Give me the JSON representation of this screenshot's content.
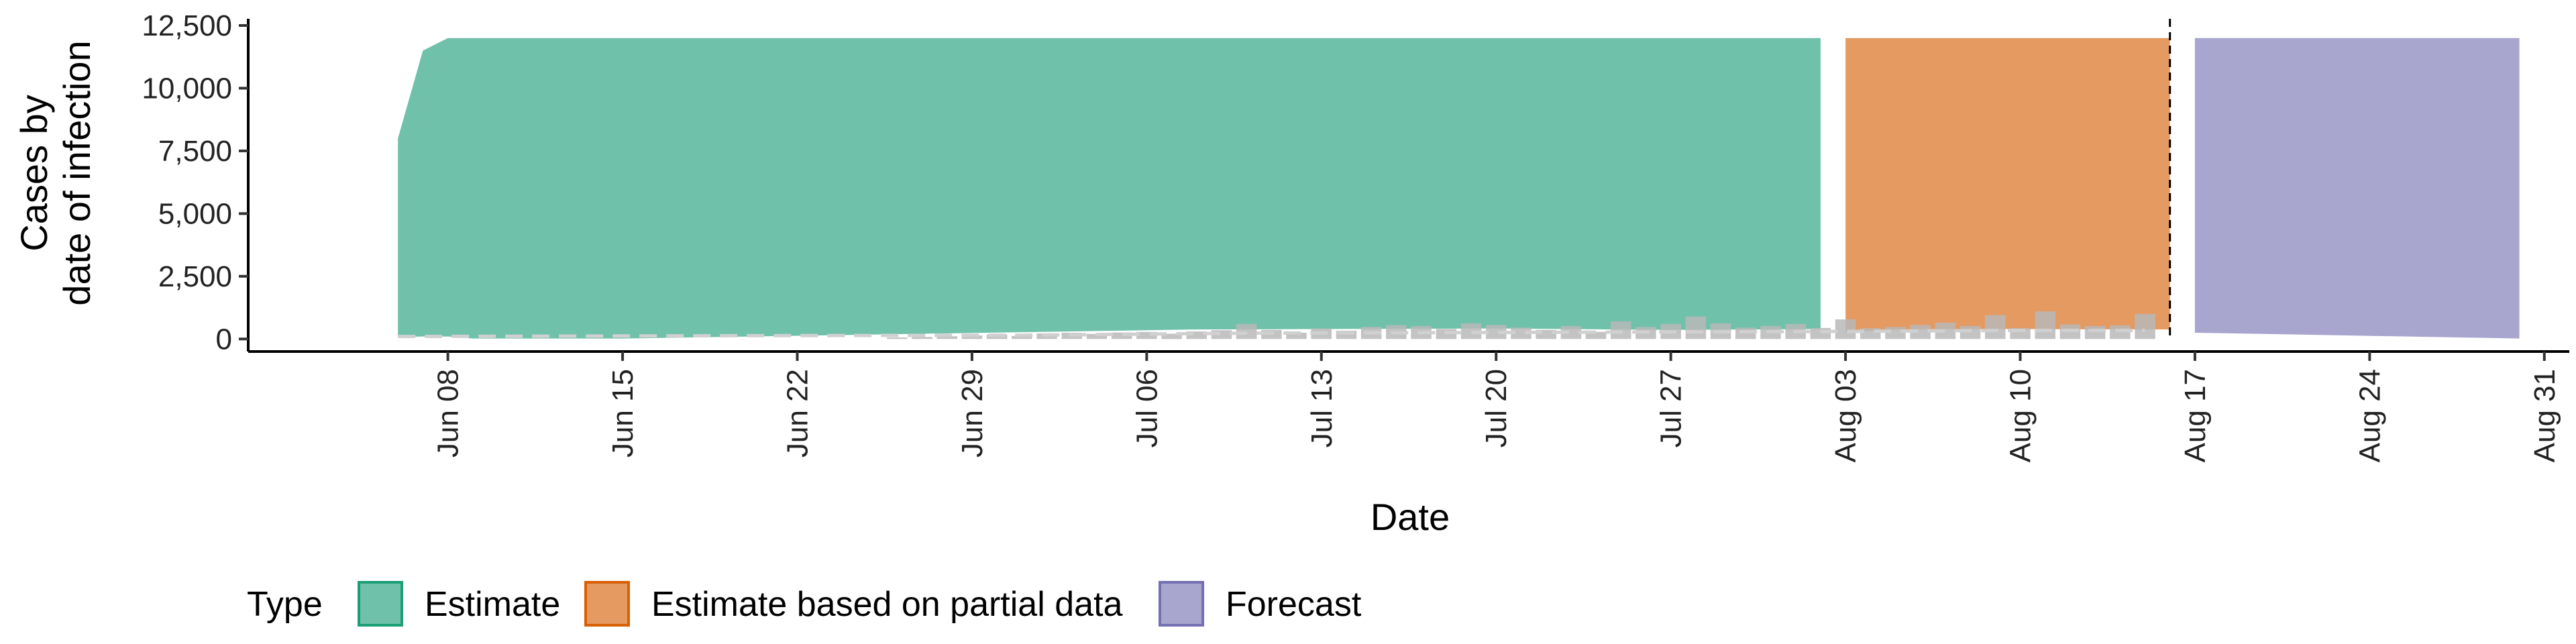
{
  "chart_data": {
    "type": "area",
    "xlabel": "Date",
    "ylabel_lines": [
      "Cases by",
      "date of infection"
    ],
    "ylim": [
      -500,
      12500
    ],
    "y_ticks": [
      0,
      2500,
      5000,
      7500,
      10000,
      12500
    ],
    "y_tick_labels": [
      "0",
      "2,500",
      "5,000",
      "7,500",
      "10,000",
      "12,500"
    ],
    "xlim": [
      "2020-05-31",
      "2020-09-01"
    ],
    "x_ticks": [
      "2020-06-08",
      "2020-06-15",
      "2020-06-22",
      "2020-06-29",
      "2020-07-06",
      "2020-07-13",
      "2020-07-20",
      "2020-07-27",
      "2020-08-03",
      "2020-08-10",
      "2020-08-17",
      "2020-08-24",
      "2020-08-31"
    ],
    "x_tick_labels": [
      "Jun 08",
      "Jun 15",
      "Jun 22",
      "Jun 29",
      "Jul 06",
      "Jul 13",
      "Jul 20",
      "Jul 27",
      "Aug 03",
      "Aug 10",
      "Aug 17",
      "Aug 24",
      "Aug 31"
    ],
    "cutoff_date": "2020-08-16",
    "legend": {
      "title": "Type",
      "entries": [
        {
          "label": "Estimate",
          "fill": "#70c1aa",
          "stroke": "#1b9e77"
        },
        {
          "label": "Estimate based on partial data",
          "fill": "#e59a62",
          "stroke": "#d95f02"
        },
        {
          "label": "Forecast",
          "fill": "#a8a5cf",
          "stroke": "#7570b3"
        }
      ]
    },
    "bands": [
      {
        "type": "Estimate",
        "color": "#70c1aa",
        "x": [
          "2020-06-06",
          "2020-06-07",
          "2020-06-08",
          "2020-06-09",
          "2020-06-15",
          "2020-07-08",
          "2020-07-20",
          "2020-07-27",
          "2020-08-02"
        ],
        "upper": [
          8000,
          11500,
          12000,
          12000,
          12000,
          12000,
          12000,
          12000,
          12000
        ],
        "lower": [
          80,
          100,
          100,
          20,
          20,
          380,
          420,
          360,
          400
        ]
      },
      {
        "type": "Estimate based on partial data",
        "color": "#e59a62",
        "x": [
          "2020-08-03",
          "2020-08-05",
          "2020-08-09",
          "2020-08-16"
        ],
        "upper": [
          12000,
          12000,
          12000,
          12000
        ],
        "lower": [
          260,
          380,
          400,
          380
        ]
      },
      {
        "type": "Forecast",
        "color": "#a8a5cf",
        "x": [
          "2020-08-17",
          "2020-08-30"
        ],
        "upper": [
          12000,
          12000
        ],
        "lower": [
          250,
          20
        ]
      }
    ],
    "reported_cases": {
      "color": "#b9b9b9",
      "x": [
        "2020-06-26",
        "2020-06-27",
        "2020-06-28",
        "2020-06-29",
        "2020-06-30",
        "2020-07-01",
        "2020-07-02",
        "2020-07-03",
        "2020-07-04",
        "2020-07-05",
        "2020-07-06",
        "2020-07-07",
        "2020-07-08",
        "2020-07-09",
        "2020-07-10",
        "2020-07-11",
        "2020-07-12",
        "2020-07-13",
        "2020-07-14",
        "2020-07-15",
        "2020-07-16",
        "2020-07-17",
        "2020-07-18",
        "2020-07-19",
        "2020-07-20",
        "2020-07-21",
        "2020-07-22",
        "2020-07-23",
        "2020-07-24",
        "2020-07-25",
        "2020-07-26",
        "2020-07-27",
        "2020-07-28",
        "2020-07-29",
        "2020-07-30",
        "2020-07-31",
        "2020-08-01",
        "2020-08-02",
        "2020-08-03",
        "2020-08-04",
        "2020-08-05",
        "2020-08-06",
        "2020-08-07",
        "2020-08-08",
        "2020-08-09",
        "2020-08-10",
        "2020-08-11",
        "2020-08-12",
        "2020-08-13",
        "2020-08-14",
        "2020-08-15"
      ],
      "values": [
        60,
        80,
        110,
        140,
        180,
        120,
        220,
        250,
        200,
        260,
        280,
        210,
        300,
        350,
        600,
        360,
        250,
        420,
        330,
        480,
        550,
        520,
        400,
        620,
        560,
        450,
        360,
        520,
        280,
        700,
        480,
        600,
        900,
        620,
        450,
        520,
        600,
        440,
        780,
        430,
        480,
        560,
        650,
        520,
        950,
        430,
        1100,
        580,
        520,
        540,
        1000
      ]
    },
    "reference_line": {
      "color": "#d0d0d0",
      "x": [
        "2020-06-06",
        "2020-06-20",
        "2020-07-01",
        "2020-07-10",
        "2020-07-20",
        "2020-07-27",
        "2020-08-03",
        "2020-08-09",
        "2020-08-15"
      ],
      "values": [
        100,
        130,
        150,
        230,
        260,
        280,
        300,
        340,
        340
      ]
    }
  }
}
